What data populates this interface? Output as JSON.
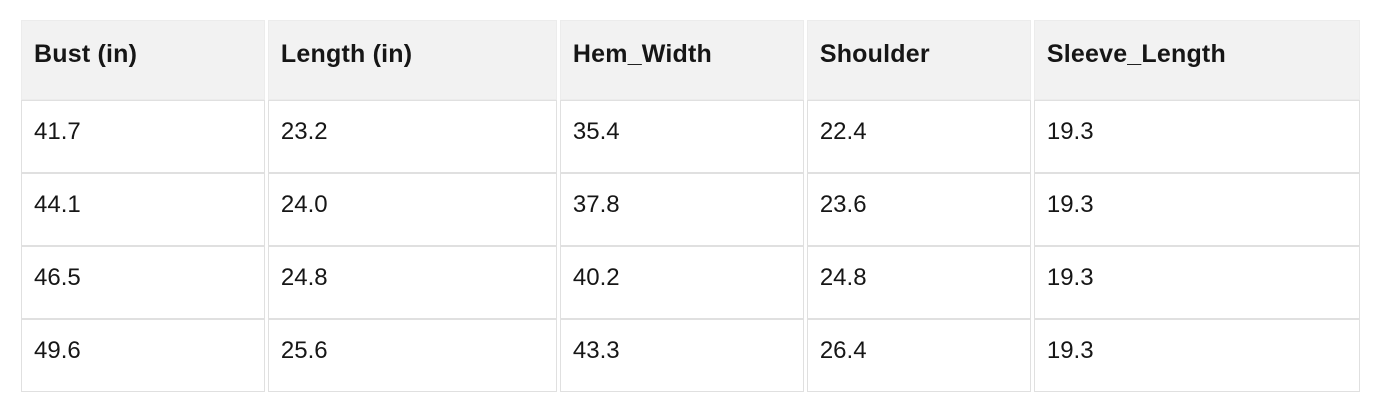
{
  "table": {
    "columns": [
      "Bust (in)",
      "Length (in)",
      "Hem_Width",
      "Shoulder",
      "Sleeve_Length"
    ],
    "rows": [
      [
        "41.7",
        "23.2",
        "35.4",
        "22.4",
        "19.3"
      ],
      [
        "44.1",
        "24.0",
        "37.8",
        "23.6",
        "19.3"
      ],
      [
        "46.5",
        "24.8",
        "40.2",
        "24.8",
        "19.3"
      ],
      [
        "49.6",
        "25.6",
        "43.3",
        "26.4",
        "19.3"
      ]
    ],
    "colors": {
      "header_bg": "#f2f2f2",
      "header_border": "#ececec",
      "cell_border": "#e0e0e0",
      "text": "#161616",
      "row_bg": "#ffffff",
      "page_bg": "#ffffff"
    }
  },
  "chart_data": {
    "type": "table",
    "columns": [
      "Bust (in)",
      "Length (in)",
      "Hem_Width",
      "Shoulder",
      "Sleeve_Length"
    ],
    "rows": [
      [
        41.7,
        23.2,
        35.4,
        22.4,
        19.3
      ],
      [
        44.1,
        24.0,
        37.8,
        23.6,
        19.3
      ],
      [
        46.5,
        24.8,
        40.2,
        24.8,
        19.3
      ],
      [
        49.6,
        25.6,
        43.3,
        26.4,
        19.3
      ]
    ],
    "notes": "Sleeve_Length constant at 19.3 across all size rows"
  }
}
